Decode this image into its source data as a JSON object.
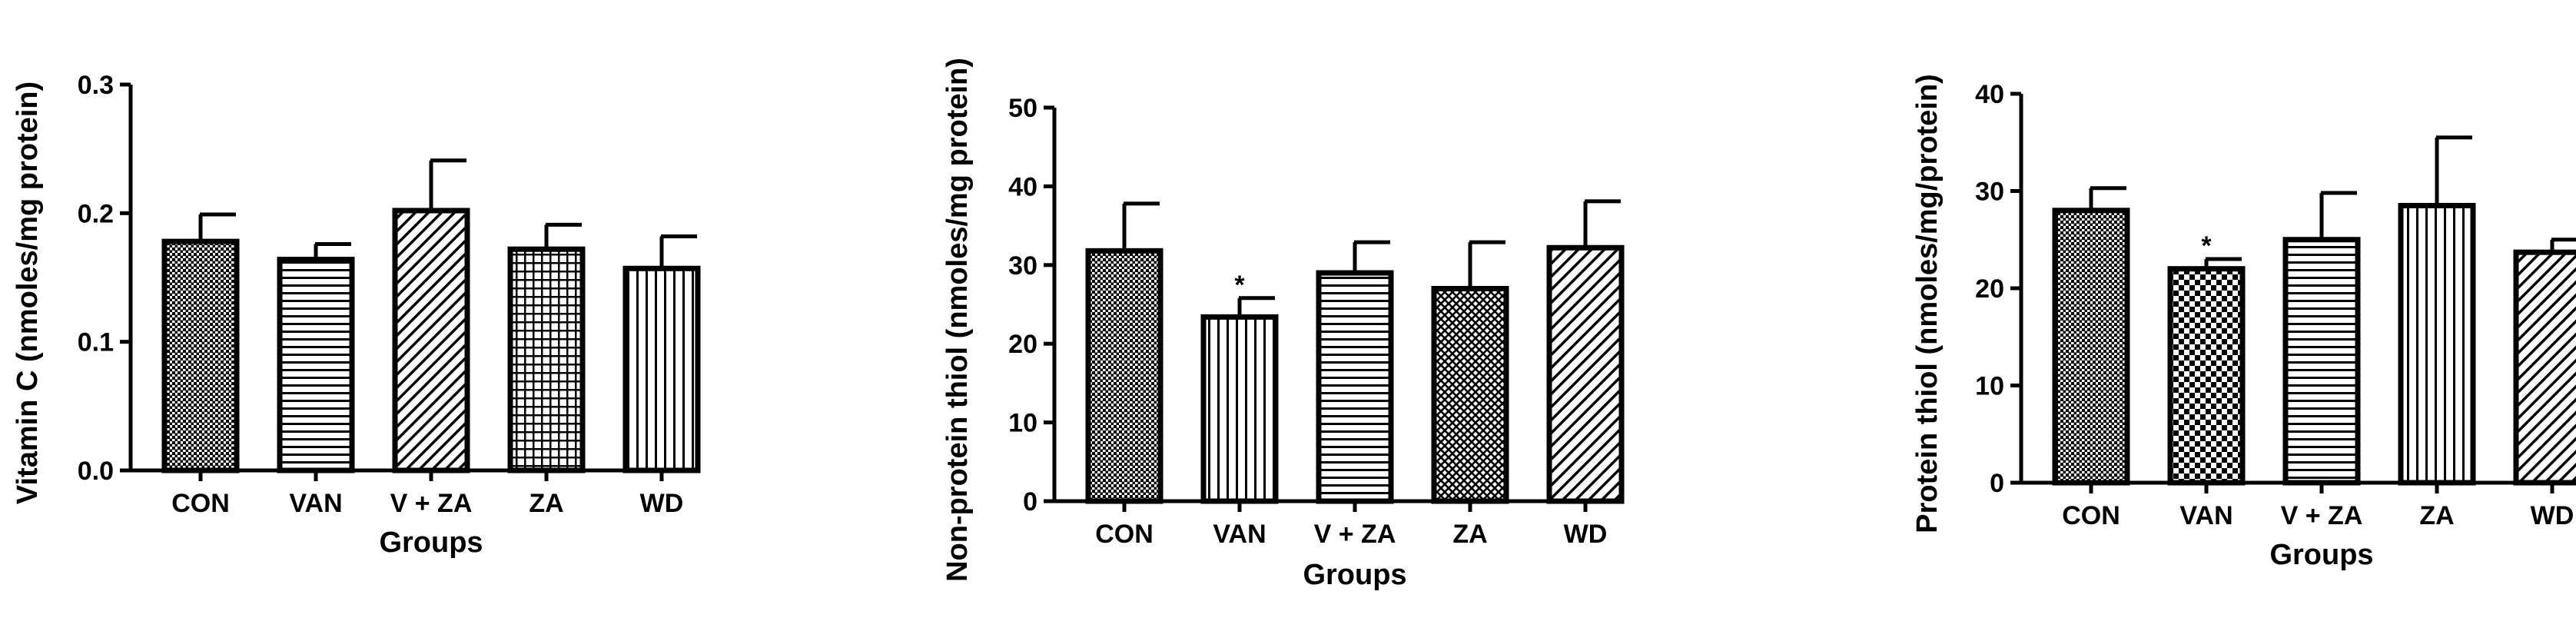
{
  "chart_data": [
    {
      "type": "bar",
      "title": "",
      "xlabel": "Groups",
      "ylabel": "Vitamin C (nmoles/mg protein)",
      "categories": [
        "CON",
        "VAN",
        "V + ZA",
        "ZA",
        "WD"
      ],
      "values": [
        0.178,
        0.164,
        0.202,
        0.172,
        0.157
      ],
      "errors": [
        0.021,
        0.012,
        0.039,
        0.019,
        0.025
      ],
      "significance": [
        "",
        "",
        "",
        "",
        ""
      ],
      "ylim": [
        0,
        0.3
      ],
      "yticks": [
        "0.0",
        "0.1",
        "0.2",
        "0.3"
      ],
      "patterns": [
        "dots",
        "hlines",
        "diag",
        "grid",
        "vlines"
      ],
      "grid": false
    },
    {
      "type": "bar",
      "title": "",
      "xlabel": "Groups",
      "ylabel": "Non-protein thiol (nmoles/mg protein)",
      "categories": [
        "CON",
        "VAN",
        "V + ZA",
        "ZA",
        "WD"
      ],
      "values": [
        31.8,
        23.4,
        29.0,
        27.0,
        32.2
      ],
      "errors": [
        6.0,
        2.4,
        3.9,
        5.9,
        5.9
      ],
      "significance": [
        "",
        "*",
        "",
        "",
        ""
      ],
      "ylim": [
        0,
        50
      ],
      "yticks": [
        "0",
        "10",
        "20",
        "30",
        "40",
        "50"
      ],
      "patterns": [
        "dots",
        "vlines",
        "hlines",
        "weave",
        "diag"
      ],
      "grid": false
    },
    {
      "type": "bar",
      "title": "",
      "xlabel": "Groups",
      "ylabel": "Protein thiol (nmoles/mg/protein)",
      "categories": [
        "CON",
        "VAN",
        "V + ZA",
        "ZA",
        "WD"
      ],
      "values": [
        28.0,
        22.0,
        25.0,
        28.5,
        23.7
      ],
      "errors": [
        2.3,
        1.0,
        4.8,
        7.0,
        1.3
      ],
      "significance": [
        "",
        "*",
        "",
        "",
        ""
      ],
      "ylim": [
        0,
        40
      ],
      "yticks": [
        "0",
        "10",
        "20",
        "30",
        "40"
      ],
      "patterns": [
        "dots",
        "checker",
        "hlines",
        "vlines",
        "diag"
      ],
      "grid": false
    }
  ]
}
